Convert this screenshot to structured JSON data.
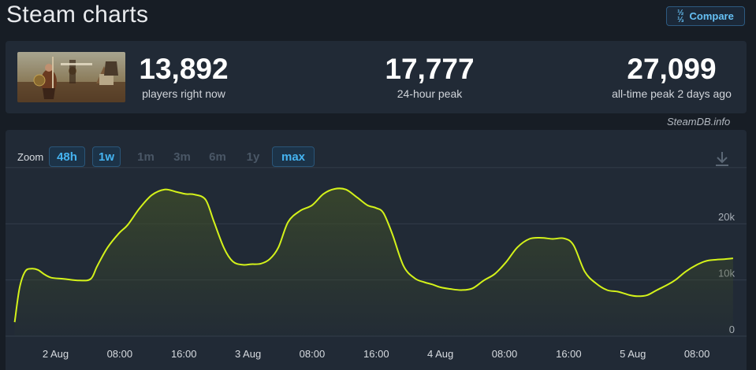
{
  "page": {
    "title": "Steam charts"
  },
  "compare": {
    "icon": "fraction-icon",
    "label": "Compare"
  },
  "stats": [
    {
      "value": "13,892",
      "label": "players right now"
    },
    {
      "value": "17,777",
      "label": "24-hour peak"
    },
    {
      "value": "27,099",
      "label": "all-time peak 2 days ago"
    }
  ],
  "attribution": "SteamDB.info",
  "zoom": {
    "label": "Zoom",
    "options": [
      {
        "label": "48h",
        "state": "active"
      },
      {
        "label": "1w",
        "state": "active"
      },
      {
        "label": "1m",
        "state": "inactive"
      },
      {
        "label": "3m",
        "state": "inactive"
      },
      {
        "label": "6m",
        "state": "inactive"
      },
      {
        "label": "1y",
        "state": "inactive"
      },
      {
        "label": "max",
        "state": "active"
      }
    ]
  },
  "colors": {
    "line": "#d4f21a",
    "area_top": "#3c4a2a",
    "grid": "#333d4a",
    "axis_text": "#a9b0b8",
    "accent": "#45b3f0"
  },
  "chart_data": {
    "type": "area",
    "title": "",
    "xlabel": "",
    "ylabel": "",
    "ylim": [
      0,
      29000
    ],
    "y_ticks": [
      0,
      10000,
      20000
    ],
    "y_tick_labels": [
      "0",
      "10k",
      "20k"
    ],
    "y_axis_side": "right",
    "grid": true,
    "x_unit": "hours",
    "x_ticks": [
      {
        "x": 0,
        "label": "2 Aug"
      },
      {
        "x": 8,
        "label": "08:00"
      },
      {
        "x": 16,
        "label": "16:00"
      },
      {
        "x": 24,
        "label": "3 Aug"
      },
      {
        "x": 32,
        "label": "08:00"
      },
      {
        "x": 40,
        "label": "16:00"
      },
      {
        "x": 48,
        "label": "4 Aug"
      },
      {
        "x": 56,
        "label": "08:00"
      },
      {
        "x": 64,
        "label": "16:00"
      },
      {
        "x": 72,
        "label": "5 Aug"
      },
      {
        "x": 80,
        "label": "08:00"
      }
    ],
    "series": [
      {
        "x": [
          -5.1,
          -4.5,
          -3.8,
          -3.0,
          -2.2,
          -1.4,
          -0.5,
          1.0,
          3.0,
          4.4,
          5.2,
          6.5,
          7.9,
          9.0,
          10.5,
          12.0,
          13.6,
          15.0,
          16.2,
          17.3,
          18.7,
          19.7,
          21.0,
          22.1,
          23.3,
          24.4,
          25.6,
          26.7,
          27.8,
          29.0,
          30.5,
          32.0,
          33.4,
          34.8,
          36.2,
          37.6,
          38.9,
          40.0,
          40.9,
          42.0,
          43.4,
          44.8,
          46.0,
          47.0,
          48.0,
          49.2,
          50.6,
          52.0,
          53.4,
          54.8,
          56.2,
          57.6,
          59.1,
          60.6,
          62.0,
          63.4,
          64.6,
          66.0,
          67.4,
          68.8,
          70.2,
          71.6,
          72.6,
          73.8,
          75.0,
          76.4,
          77.4,
          78.6,
          80.0,
          81.2,
          82.4,
          83.4,
          84.5
        ],
        "y": [
          2500,
          8500,
          11500,
          12000,
          11800,
          11000,
          10400,
          10200,
          9900,
          10200,
          12500,
          15800,
          18300,
          19800,
          22800,
          25100,
          26100,
          25700,
          25300,
          25200,
          24300,
          20600,
          15700,
          13300,
          12700,
          12800,
          12900,
          13700,
          15800,
          20300,
          22300,
          23300,
          25300,
          26200,
          26100,
          24700,
          23300,
          22800,
          21900,
          18200,
          12500,
          10300,
          9600,
          9200,
          8700,
          8400,
          8200,
          8500,
          9900,
          11100,
          13200,
          15800,
          17300,
          17500,
          17300,
          17400,
          16200,
          11500,
          9400,
          8200,
          7900,
          7300,
          7100,
          7300,
          8200,
          9200,
          10100,
          11500,
          12700,
          13400,
          13600,
          13700,
          13850
        ]
      }
    ]
  }
}
